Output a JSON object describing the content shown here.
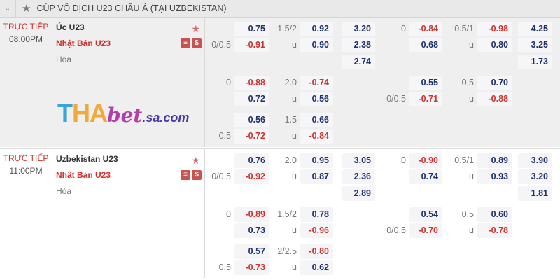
{
  "league": {
    "title": "CÚP VÔ ĐỊCH U23 CHÂU Á (TẠI UZBEKISTAN)",
    "collapse_icon": "chevron-down",
    "star_icon": "star"
  },
  "watermark": {
    "text": "THAbet.sa.com"
  },
  "colors": {
    "negative": "#d0312d",
    "positive": "#1c2f6e",
    "live": "#d0312d"
  },
  "matches": [
    {
      "status": "TRỰC TIẾP",
      "time": "08:00PM",
      "home": "Úc U23",
      "away": "Nhật Bản U23",
      "draw": "Hòa",
      "badges": [
        "≡",
        "$"
      ],
      "lines": [
        {
          "hl": "",
          "ho": "0.75",
          "ol": "1.5/2",
          "oo": "0.92",
          "x": "3.20",
          "h1l": "0",
          "h1o": "-0.84",
          "o1l": "0.5/1",
          "o1o": "-0.98",
          "x1": "4.25"
        },
        {
          "hl": "0/0.5",
          "ho": "-0.91",
          "ol": "u",
          "oo": "0.90",
          "x": "2.38",
          "h1l": "",
          "h1o": "0.68",
          "o1l": "u",
          "o1o": "0.80",
          "x1": "3.25"
        },
        {
          "x": "2.74",
          "x1": "1.73"
        },
        {
          "hl": "0",
          "ho": "-0.88",
          "ol": "2.0",
          "oo": "-0.74",
          "h1l": "",
          "h1o": "0.55",
          "o1l": "0.5",
          "o1o": "0.70"
        },
        {
          "hl": "",
          "ho": "0.72",
          "ol": "u",
          "oo": "0.56",
          "h1l": "0/0.5",
          "h1o": "-0.71",
          "o1l": "u",
          "o1o": "-0.88"
        },
        {
          "hl": "",
          "ho": "0.56",
          "ol": "1.5",
          "oo": "0.66"
        },
        {
          "hl": "0.5",
          "ho": "-0.72",
          "ol": "u",
          "oo": "-0.84"
        }
      ]
    },
    {
      "status": "TRỰC TIẾP",
      "time": "11:00PM",
      "home": "Uzbekistan U23",
      "away": "Nhật Bản U23",
      "draw": "Hòa",
      "badges": [
        "≡",
        "$"
      ],
      "lines": [
        {
          "hl": "",
          "ho": "0.76",
          "ol": "2.0",
          "oo": "0.95",
          "x": "3.05",
          "h1l": "0",
          "h1o": "-0.90",
          "o1l": "0.5/1",
          "o1o": "0.89",
          "x1": "3.90"
        },
        {
          "hl": "0/0.5",
          "ho": "-0.92",
          "ol": "u",
          "oo": "0.87",
          "x": "2.36",
          "h1l": "",
          "h1o": "0.74",
          "o1l": "u",
          "o1o": "0.93",
          "x1": "3.20"
        },
        {
          "x": "2.89",
          "x1": "1.81"
        },
        {
          "hl": "0",
          "ho": "-0.89",
          "ol": "1.5/2",
          "oo": "0.78",
          "h1l": "",
          "h1o": "0.54",
          "o1l": "0.5",
          "o1o": "0.60"
        },
        {
          "hl": "",
          "ho": "0.73",
          "ol": "u",
          "oo": "-0.96",
          "h1l": "0/0.5",
          "h1o": "-0.70",
          "o1l": "u",
          "o1o": "-0.78"
        },
        {
          "hl": "",
          "ho": "0.57",
          "ol": "2/2.5",
          "oo": "-0.80"
        },
        {
          "hl": "0.5",
          "ho": "-0.73",
          "ol": "u",
          "oo": "0.62"
        }
      ]
    }
  ]
}
